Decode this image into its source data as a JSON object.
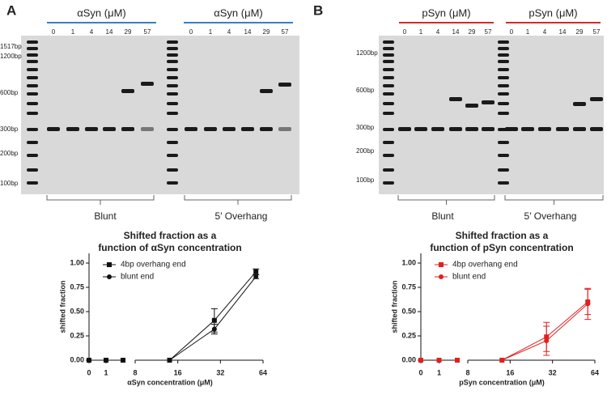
{
  "gels": [
    {
      "letter": "A",
      "headers": [
        "αSyn (μM)",
        "αSyn (μM)"
      ],
      "lanes": [
        "0",
        "1",
        "4",
        "14",
        "29",
        "57"
      ],
      "ladder": [
        "1517bp",
        "1200bp",
        "600bp",
        "300bp",
        "200bp",
        "100bp"
      ],
      "groups": [
        "Blunt",
        "5′ Overhang"
      ],
      "header_color": "#3a7fc4"
    },
    {
      "letter": "B",
      "headers": [
        "pSyn (μM)",
        "pSyn (μM)"
      ],
      "lanes": [
        "0",
        "1",
        "4",
        "14",
        "29",
        "57"
      ],
      "ladder": [
        "1200bp",
        "600bp",
        "300bp",
        "200bp",
        "100bp"
      ],
      "groups": [
        "Blunt",
        "5′ Overhang"
      ],
      "header_color": "#d42a2a"
    }
  ],
  "chart_data": [
    {
      "type": "scatter",
      "title": [
        "Shifted fraction as a",
        "function of αSyn concentration"
      ],
      "x_label": "αSyn concentration (μM)",
      "y_label": "shifted fraction",
      "x": [
        0,
        1,
        4,
        14,
        29,
        57
      ],
      "x_segments": [
        {
          "xlim": [
            0,
            4
          ],
          "scale": "sqrt"
        },
        {
          "xlim": [
            8,
            64
          ],
          "scale": "log"
        }
      ],
      "xticks": [
        0,
        1,
        8,
        16,
        32,
        64
      ],
      "ylim": [
        0,
        1.1
      ],
      "yticks": [
        {
          "value": 0,
          "label": "0.00"
        },
        {
          "value": 0.25,
          "label": "0.25"
        },
        {
          "value": 0.5,
          "label": "0.50"
        },
        {
          "value": 0.75,
          "label": "0.75"
        },
        {
          "value": 1,
          "label": "1.00"
        }
      ],
      "series": [
        {
          "name": "4bp overhang end",
          "color": "#111111",
          "marker": "square",
          "values": [
            0,
            0,
            0,
            0,
            0.41,
            0.91
          ],
          "errors": [
            null,
            null,
            null,
            null,
            0.12,
            0.03
          ]
        },
        {
          "name": "blunt end",
          "color": "#111111",
          "marker": "circle",
          "values": [
            0,
            0,
            0,
            0,
            0.32,
            0.86
          ],
          "errors": [
            null,
            null,
            null,
            null,
            0.05,
            0.02
          ]
        }
      ]
    },
    {
      "type": "scatter",
      "title": [
        "Shifted fraction as a",
        "function of pSyn concentration"
      ],
      "x_label": "pSyn concentration (μM)",
      "y_label": "shifted fraction",
      "x": [
        0,
        1,
        4,
        14,
        29,
        57
      ],
      "x_segments": [
        {
          "xlim": [
            0,
            4
          ],
          "scale": "sqrt"
        },
        {
          "xlim": [
            8,
            64
          ],
          "scale": "log"
        }
      ],
      "xticks": [
        0,
        1,
        8,
        16,
        32,
        64
      ],
      "ylim": [
        0,
        1.1
      ],
      "yticks": [
        {
          "value": 0,
          "label": "0.00"
        },
        {
          "value": 0.25,
          "label": "0.25"
        },
        {
          "value": 0.5,
          "label": "0.50"
        },
        {
          "value": 0.75,
          "label": "0.75"
        },
        {
          "value": 1,
          "label": "1.00"
        }
      ],
      "series": [
        {
          "name": "4bp overhang end",
          "color": "#e02020",
          "marker": "square",
          "values": [
            0,
            0,
            0,
            0,
            0.24,
            0.6
          ],
          "errors": [
            null,
            null,
            null,
            null,
            0.15,
            0.13
          ]
        },
        {
          "name": "blunt end",
          "color": "#e02020",
          "marker": "circle",
          "values": [
            0,
            0,
            0,
            0,
            0.2,
            0.58
          ],
          "errors": [
            null,
            null,
            null,
            null,
            0.15,
            0.16
          ]
        }
      ]
    }
  ]
}
